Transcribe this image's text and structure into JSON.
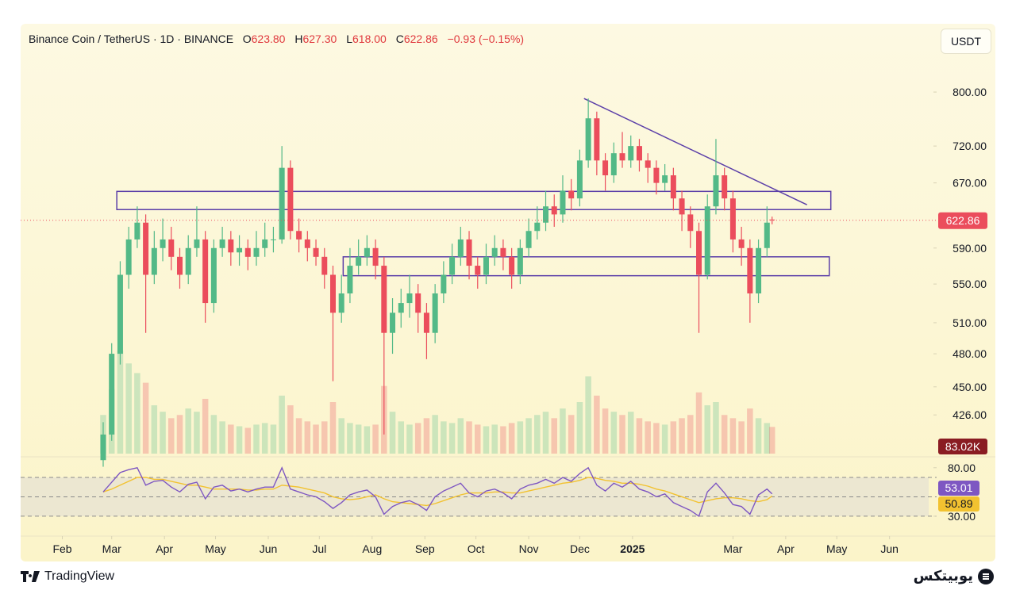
{
  "header": {
    "symbol": "Binance Coin / TetherUS · 1D · BINANCE",
    "ohlc": [
      {
        "label": "O",
        "value": "623.80"
      },
      {
        "label": "H",
        "value": "627.30"
      },
      {
        "label": "L",
        "value": "618.00"
      },
      {
        "label": "C",
        "value": "622.86"
      }
    ],
    "change": "−0.93 (−0.15%)",
    "currency": "USDT"
  },
  "chart_data": [
    {
      "type": "candlestick",
      "log_scale": true,
      "grid": false,
      "up_color": "#53b987",
      "down_color": "#eb4d5c",
      "x": [
        55,
        60,
        65,
        70,
        75,
        80,
        85,
        90,
        95,
        100,
        105,
        110,
        115,
        120,
        125,
        130,
        135,
        140,
        145,
        150,
        155,
        160,
        165,
        170,
        175,
        180,
        185,
        190,
        195,
        200,
        205,
        210,
        215,
        220,
        225,
        230,
        235,
        240,
        245,
        250,
        255,
        260,
        265,
        270,
        275,
        280,
        285,
        290,
        295,
        300,
        305,
        310,
        315,
        320,
        325,
        330,
        335,
        340,
        345,
        350,
        355,
        360,
        365,
        370,
        375,
        380,
        385,
        390,
        395,
        400,
        405,
        410,
        415,
        420,
        425,
        430,
        435,
        440,
        445,
        448
      ],
      "open": [
        390,
        410,
        480,
        560,
        600,
        620,
        560,
        590,
        600,
        580,
        560,
        590,
        600,
        530,
        590,
        600,
        585,
        590,
        580,
        590,
        600,
        600,
        690,
        610,
        600,
        590,
        580,
        560,
        520,
        540,
        570,
        580,
        590,
        570,
        500,
        520,
        530,
        540,
        520,
        500,
        540,
        560,
        580,
        600,
        570,
        560,
        580,
        590,
        580,
        560,
        590,
        610,
        620,
        640,
        630,
        660,
        650,
        700,
        760,
        700,
        680,
        710,
        700,
        720,
        700,
        690,
        670,
        680,
        650,
        630,
        610,
        560,
        640,
        680,
        650,
        600,
        590,
        540,
        590,
        623.8
      ],
      "high": [
        420,
        490,
        575,
        615,
        640,
        630,
        610,
        625,
        615,
        590,
        605,
        640,
        610,
        600,
        615,
        610,
        605,
        600,
        610,
        620,
        615,
        720,
        700,
        625,
        610,
        600,
        590,
        570,
        560,
        590,
        600,
        605,
        600,
        580,
        535,
        545,
        560,
        550,
        530,
        550,
        575,
        595,
        615,
        610,
        580,
        595,
        605,
        600,
        590,
        600,
        625,
        640,
        660,
        655,
        680,
        675,
        715,
        790,
        770,
        710,
        725,
        740,
        735,
        730,
        710,
        700,
        695,
        690,
        660,
        640,
        620,
        655,
        730,
        690,
        660,
        615,
        600,
        600,
        640,
        627.3
      ],
      "low": [
        385,
        405,
        470,
        545,
        590,
        500,
        550,
        575,
        565,
        545,
        550,
        580,
        510,
        520,
        580,
        570,
        570,
        565,
        570,
        580,
        585,
        595,
        600,
        585,
        575,
        570,
        545,
        455,
        510,
        530,
        560,
        570,
        555,
        410,
        480,
        505,
        515,
        500,
        475,
        490,
        530,
        550,
        570,
        555,
        545,
        550,
        570,
        565,
        545,
        550,
        580,
        600,
        610,
        615,
        620,
        635,
        640,
        690,
        680,
        660,
        670,
        690,
        690,
        685,
        670,
        655,
        660,
        635,
        610,
        590,
        500,
        555,
        630,
        635,
        585,
        570,
        510,
        530,
        580,
        618
      ],
      "close": [
        410,
        480,
        560,
        600,
        620,
        560,
        590,
        600,
        580,
        560,
        590,
        600,
        530,
        590,
        600,
        585,
        590,
        580,
        590,
        600,
        600,
        690,
        610,
        600,
        590,
        580,
        560,
        520,
        540,
        570,
        580,
        590,
        570,
        500,
        520,
        530,
        540,
        520,
        500,
        540,
        560,
        580,
        600,
        570,
        560,
        580,
        590,
        580,
        560,
        590,
        610,
        620,
        640,
        630,
        660,
        650,
        700,
        760,
        700,
        680,
        710,
        700,
        720,
        700,
        690,
        670,
        680,
        650,
        630,
        610,
        560,
        640,
        680,
        650,
        600,
        590,
        540,
        590,
        620,
        622.86
      ],
      "volume": [
        120000,
        200000,
        320000,
        280000,
        250000,
        220000,
        150000,
        130000,
        110000,
        120000,
        140000,
        130000,
        170000,
        120000,
        100000,
        90000,
        85000,
        80000,
        90000,
        95000,
        90000,
        180000,
        150000,
        110000,
        100000,
        90000,
        100000,
        160000,
        110000,
        95000,
        90000,
        85000,
        90000,
        210000,
        130000,
        100000,
        90000,
        95000,
        110000,
        120000,
        100000,
        95000,
        110000,
        100000,
        90000,
        85000,
        90000,
        85000,
        95000,
        100000,
        110000,
        120000,
        130000,
        110000,
        140000,
        120000,
        160000,
        240000,
        180000,
        140000,
        130000,
        120000,
        130000,
        110000,
        100000,
        95000,
        90000,
        100000,
        110000,
        120000,
        190000,
        150000,
        160000,
        120000,
        110000,
        100000,
        140000,
        110000,
        95000,
        83020
      ],
      "volume_label": "83.02K",
      "xlim": [
        6.5,
        540
      ],
      "xticks": [
        {
          "value": 31,
          "label": "Feb"
        },
        {
          "value": 60,
          "label": "Mar"
        },
        {
          "value": 91,
          "label": "Apr"
        },
        {
          "value": 121,
          "label": "May"
        },
        {
          "value": 152,
          "label": "Jun"
        },
        {
          "value": 182,
          "label": "Jul"
        },
        {
          "value": 213,
          "label": "Aug"
        },
        {
          "value": 244,
          "label": "Sep"
        },
        {
          "value": 274,
          "label": "Oct"
        },
        {
          "value": 305,
          "label": "Nov"
        },
        {
          "value": 335,
          "label": "Dec"
        },
        {
          "value": 366,
          "label": "2025"
        },
        {
          "value": 425,
          "label": "Mar"
        },
        {
          "value": 456,
          "label": "Apr"
        },
        {
          "value": 486,
          "label": "May"
        },
        {
          "value": 517,
          "label": "Jun"
        }
      ],
      "ylim": [
        395,
        914
      ],
      "yticks": [
        {
          "value": 800,
          "label": "800.00"
        },
        {
          "value": 720,
          "label": "720.00"
        },
        {
          "value": 670,
          "label": "670.00"
        },
        {
          "value": 590,
          "label": "590.00"
        },
        {
          "value": 550,
          "label": "550.00"
        },
        {
          "value": 510,
          "label": "510.00"
        },
        {
          "value": 480,
          "label": "480.00"
        },
        {
          "value": 450,
          "label": "450.00"
        },
        {
          "value": 426,
          "label": "426.00"
        }
      ],
      "zones": [
        {
          "x": [
            63,
            482.5
          ],
          "y": [
            636,
            659
          ],
          "color": "#5b3fa8"
        },
        {
          "x": [
            196,
            481.6
          ],
          "y": [
            559,
            580
          ],
          "color": "#5b3fa8"
        }
      ],
      "trendline": {
        "x": [
          337.5,
          468.5
        ],
        "y": [
          790,
          642
        ],
        "color": "#5b3fa8"
      }
    },
    {
      "type": "line",
      "series": [
        {
          "color": "#7e57c2",
          "values": [
            55,
            65,
            75,
            78,
            80,
            62,
            66,
            67,
            60,
            55,
            63,
            65,
            48,
            60,
            62,
            56,
            58,
            55,
            58,
            60,
            60,
            80,
            58,
            55,
            52,
            50,
            45,
            38,
            44,
            52,
            55,
            57,
            50,
            32,
            40,
            44,
            46,
            42,
            36,
            50,
            56,
            60,
            64,
            54,
            50,
            56,
            58,
            54,
            48,
            58,
            62,
            64,
            68,
            64,
            70,
            66,
            74,
            80,
            62,
            56,
            64,
            60,
            66,
            58,
            55,
            50,
            53,
            44,
            40,
            36,
            30,
            55,
            64,
            54,
            42,
            40,
            32,
            52,
            58,
            53.01
          ]
        },
        {
          "color": "#f2c230",
          "values": [
            55,
            58,
            62,
            66,
            70,
            70,
            68,
            68,
            66,
            64,
            62,
            62,
            60,
            58,
            58,
            58,
            58,
            57,
            57,
            58,
            58,
            62,
            61,
            60,
            58,
            56,
            54,
            50,
            48,
            47,
            48,
            50,
            52,
            48,
            45,
            44,
            43,
            42,
            41,
            43,
            46,
            49,
            52,
            54,
            54,
            54,
            55,
            55,
            54,
            54,
            56,
            58,
            60,
            62,
            64,
            65,
            67,
            70,
            69,
            67,
            66,
            64,
            64,
            63,
            61,
            58,
            56,
            53,
            50,
            47,
            44,
            46,
            48,
            49,
            49,
            48,
            46,
            45,
            47,
            50.89
          ]
        }
      ],
      "ylim": [
        16,
        88
      ],
      "yticks": [
        {
          "value": 80,
          "label": "80.00"
        },
        {
          "value": 30,
          "label": "30.00"
        }
      ],
      "hlines": [
        70,
        50,
        30
      ]
    }
  ],
  "footer": {
    "brand": "TradingView",
    "watermark": "یوبیتکس"
  }
}
